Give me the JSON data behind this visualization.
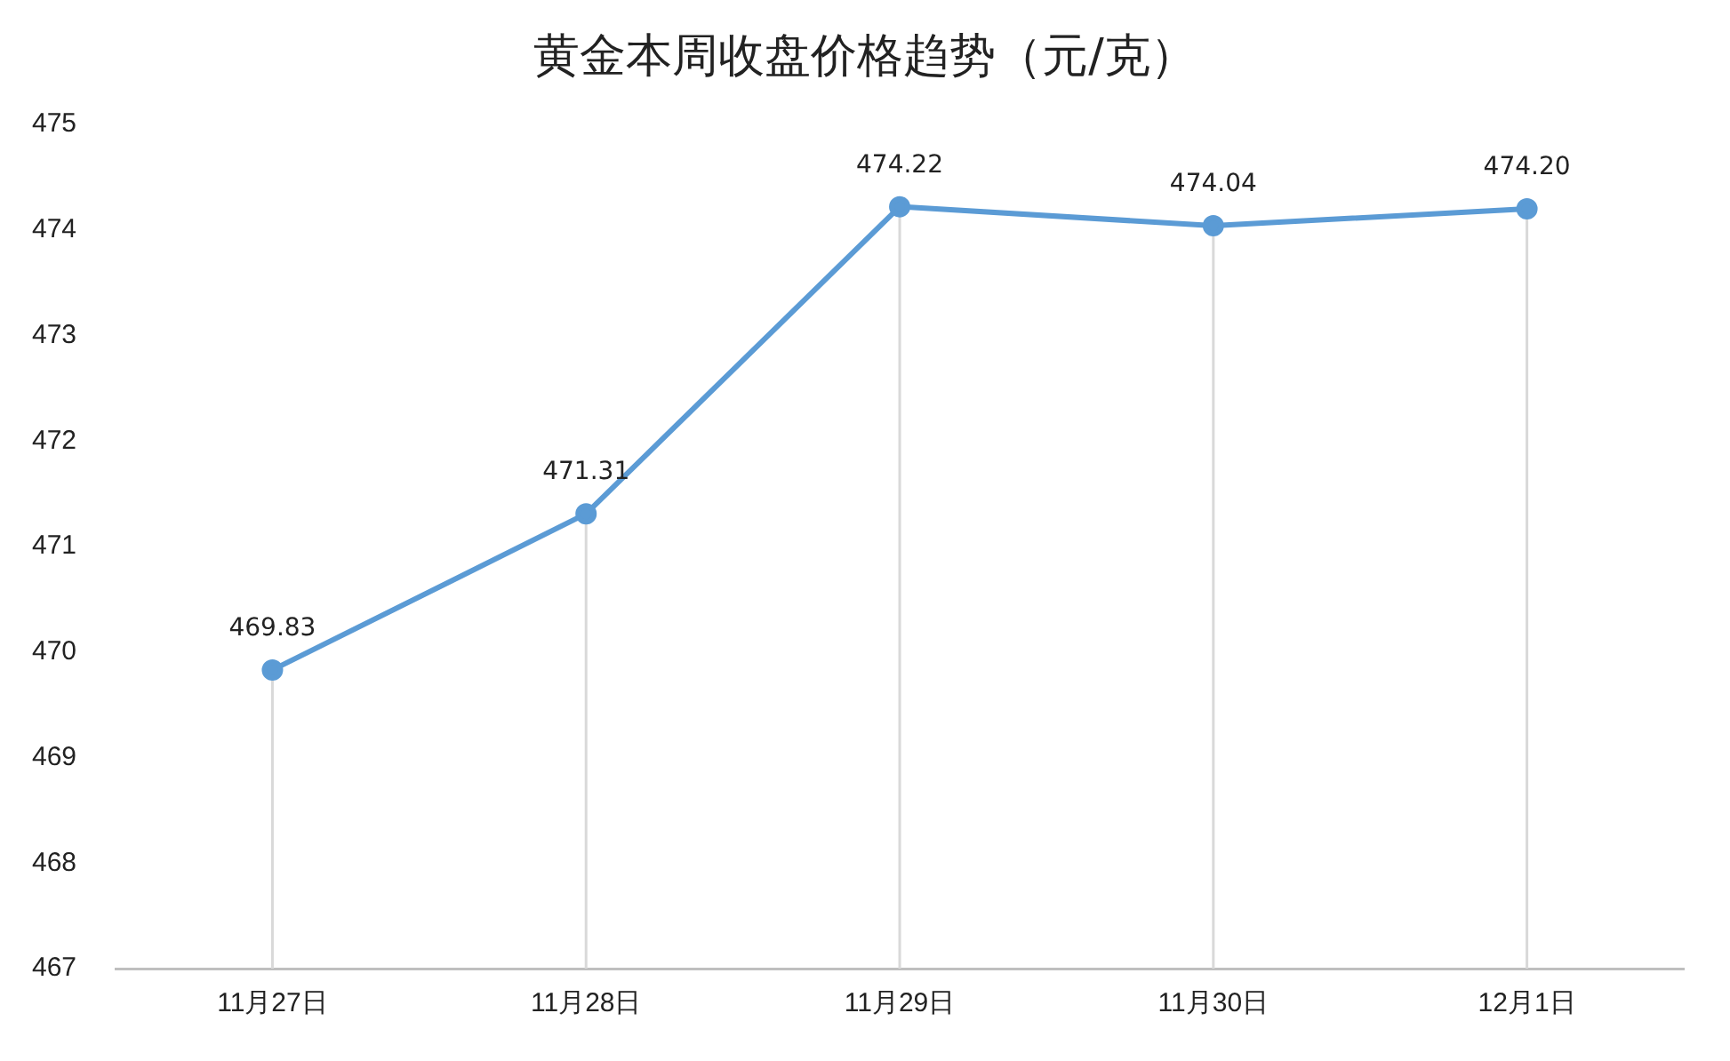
{
  "chart_data": {
    "type": "line",
    "title": "黄金本周收盘价格趋势（元/克）",
    "categories": [
      "11月27日",
      "11月28日",
      "11月29日",
      "11月30日",
      "12月1日"
    ],
    "series": [
      {
        "color": "#5b9bd5",
        "values": [
          469.83,
          471.31,
          474.22,
          474.04,
          474.2
        ],
        "value_labels": [
          "469.83",
          "471.31",
          "474.22",
          "474.04",
          "474.20"
        ]
      }
    ],
    "ylim": [
      467,
      475
    ],
    "yticks": [
      467,
      468,
      469,
      470,
      471,
      472,
      473,
      474,
      475
    ],
    "grid": "x",
    "legend": false,
    "marker": "circle",
    "line_style": "solid"
  }
}
